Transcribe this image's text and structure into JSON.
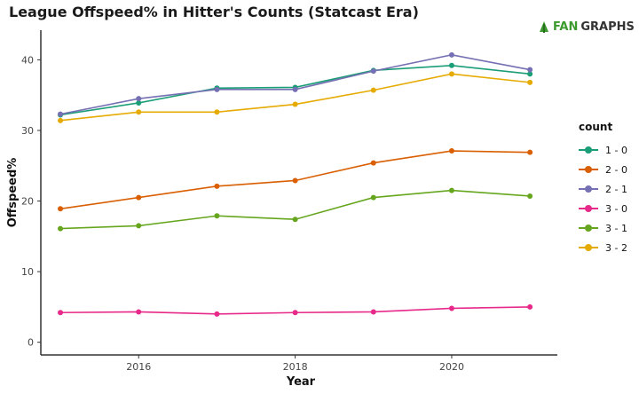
{
  "title": "League Offspeed% in Hitter's Counts (Statcast Era)",
  "brand": {
    "mark": "R",
    "text_fan": "FAN",
    "text_graphs": "GRAPHS"
  },
  "chart_data": {
    "type": "line",
    "title": "League Offspeed% in Hitter's Counts (Statcast Era)",
    "xlabel": "Year",
    "ylabel": "Offspeed%",
    "xlim": [
      2014.75,
      2021.35
    ],
    "ylim": [
      -1.8,
      44.2
    ],
    "x_ticks": [
      2016,
      2018,
      2020
    ],
    "y_ticks": [
      0,
      10,
      20,
      30,
      40
    ],
    "grid": false,
    "legend_title": "count",
    "legend_position": "right",
    "x": [
      2015,
      2016,
      2017,
      2018,
      2019,
      2020,
      2021
    ],
    "series": [
      {
        "name": "1 - 0",
        "color": "#1b9e77",
        "values": [
          32.2,
          33.9,
          36.0,
          36.1,
          38.5,
          39.2,
          38.0
        ]
      },
      {
        "name": "2 - 0",
        "color": "#d95f02",
        "values": [
          18.9,
          20.5,
          22.1,
          22.9,
          25.4,
          27.1,
          26.9
        ]
      },
      {
        "name": "2 - 1",
        "color": "#7570b3",
        "values": [
          32.3,
          34.5,
          35.8,
          35.8,
          38.4,
          40.7,
          38.6
        ]
      },
      {
        "name": "3 - 0",
        "color": "#e7298a",
        "values": [
          4.2,
          4.3,
          4.0,
          4.2,
          4.3,
          4.8,
          5.0
        ]
      },
      {
        "name": "3 - 1",
        "color": "#66a61e",
        "values": [
          16.1,
          16.5,
          17.9,
          17.4,
          20.5,
          21.5,
          20.7
        ]
      },
      {
        "name": "3 - 2",
        "color": "#e6ab02",
        "values": [
          31.4,
          32.6,
          32.6,
          33.7,
          35.7,
          38.0,
          36.8
        ]
      }
    ]
  }
}
